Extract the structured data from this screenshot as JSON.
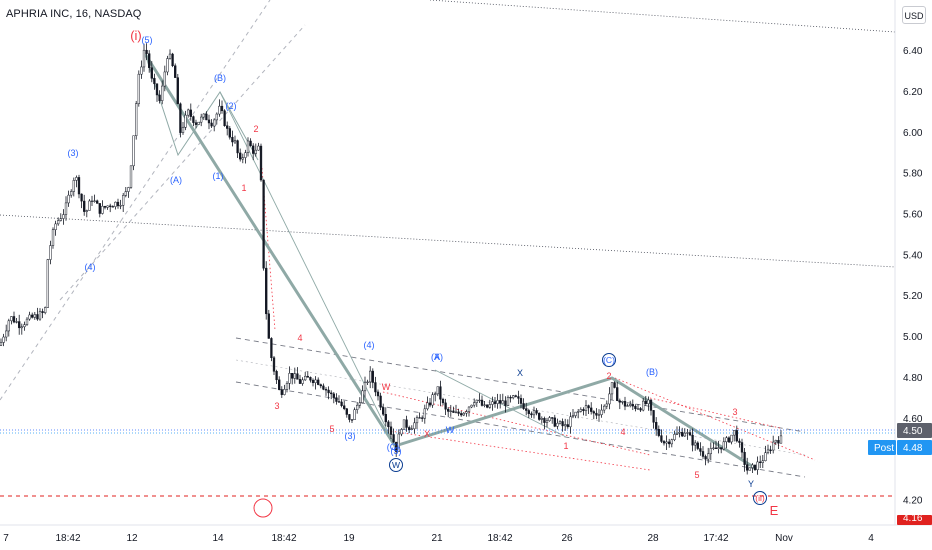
{
  "header": {
    "title": "APHRIA INC, 16, NASDAQ",
    "currency": "USD"
  },
  "chart_data": {
    "type": "candlestick",
    "title": "APHRIA INC, 16, NASDAQ",
    "currency": "USD",
    "ylim": [
      4.08,
      6.65
    ],
    "y_ticks": [
      "6.40",
      "6.20",
      "6.00",
      "5.80",
      "5.60",
      "5.40",
      "5.20",
      "5.00",
      "4.80",
      "4.60",
      "4.20"
    ],
    "x_ticks": [
      "7",
      "18:42",
      "12",
      "14",
      "18:42",
      "19",
      "21",
      "18:42",
      "26",
      "28",
      "17:42",
      "Nov",
      "4"
    ],
    "price_labels": {
      "last": "4.50",
      "post_label": "Post",
      "post_value": "4.48",
      "stop_value": "4.16"
    },
    "stop_level": 4.16,
    "price_path": [
      [
        0,
        4.96
      ],
      [
        10,
        5.1
      ],
      [
        20,
        5.06
      ],
      [
        30,
        5.09
      ],
      [
        45,
        5.12
      ],
      [
        48,
        5.4
      ],
      [
        55,
        5.55
      ],
      [
        65,
        5.62
      ],
      [
        75,
        5.8
      ],
      [
        85,
        5.6
      ],
      [
        92,
        5.68
      ],
      [
        100,
        5.62
      ],
      [
        110,
        5.65
      ],
      [
        120,
        5.66
      ],
      [
        128,
        5.72
      ],
      [
        132,
        5.9
      ],
      [
        138,
        6.25
      ],
      [
        145,
        6.43
      ],
      [
        152,
        6.25
      ],
      [
        160,
        6.15
      ],
      [
        168,
        6.4
      ],
      [
        175,
        6.28
      ],
      [
        180,
        6.0
      ],
      [
        188,
        6.1
      ],
      [
        196,
        6.05
      ],
      [
        205,
        6.08
      ],
      [
        212,
        6.05
      ],
      [
        220,
        6.12
      ],
      [
        228,
        6.0
      ],
      [
        235,
        5.95
      ],
      [
        240,
        5.85
      ],
      [
        248,
        5.95
      ],
      [
        255,
        5.9
      ],
      [
        260,
        5.93
      ],
      [
        263,
        5.4
      ],
      [
        267,
        5.05
      ],
      [
        272,
        4.88
      ],
      [
        280,
        4.72
      ],
      [
        290,
        4.82
      ],
      [
        300,
        4.78
      ],
      [
        310,
        4.8
      ],
      [
        320,
        4.78
      ],
      [
        330,
        4.72
      ],
      [
        340,
        4.68
      ],
      [
        350,
        4.58
      ],
      [
        360,
        4.7
      ],
      [
        370,
        4.82
      ],
      [
        380,
        4.68
      ],
      [
        390,
        4.55
      ],
      [
        396,
        4.45
      ],
      [
        402,
        4.58
      ],
      [
        410,
        4.56
      ],
      [
        420,
        4.6
      ],
      [
        430,
        4.68
      ],
      [
        437,
        4.75
      ],
      [
        445,
        4.64
      ],
      [
        455,
        4.62
      ],
      [
        465,
        4.64
      ],
      [
        475,
        4.7
      ],
      [
        485,
        4.65
      ],
      [
        495,
        4.68
      ],
      [
        505,
        4.68
      ],
      [
        515,
        4.7
      ],
      [
        525,
        4.66
      ],
      [
        535,
        4.62
      ],
      [
        545,
        4.6
      ],
      [
        555,
        4.58
      ],
      [
        565,
        4.56
      ],
      [
        575,
        4.62
      ],
      [
        585,
        4.66
      ],
      [
        595,
        4.62
      ],
      [
        605,
        4.66
      ],
      [
        612,
        4.76
      ],
      [
        620,
        4.68
      ],
      [
        630,
        4.66
      ],
      [
        640,
        4.66
      ],
      [
        648,
        4.68
      ],
      [
        655,
        4.55
      ],
      [
        665,
        4.48
      ],
      [
        675,
        4.52
      ],
      [
        685,
        4.54
      ],
      [
        695,
        4.47
      ],
      [
        705,
        4.42
      ],
      [
        715,
        4.45
      ],
      [
        725,
        4.48
      ],
      [
        735,
        4.54
      ],
      [
        742,
        4.42
      ],
      [
        748,
        4.34
      ],
      [
        756,
        4.37
      ],
      [
        766,
        4.42
      ],
      [
        775,
        4.5
      ],
      [
        782,
        4.5
      ]
    ],
    "wave_labels": [
      {
        "text": "(i)",
        "color": "#f23645"
      },
      {
        "text": "(5)",
        "color": "#2962ff"
      },
      {
        "text": "(B)",
        "color": "#2962ff"
      },
      {
        "text": "(2)",
        "color": "#2962ff"
      },
      {
        "text": "2",
        "color": "#f23645"
      },
      {
        "text": "(3)",
        "color": "#2962ff"
      },
      {
        "text": "(A)",
        "color": "#2962ff"
      },
      {
        "text": "(1)",
        "color": "#2962ff"
      },
      {
        "text": "1",
        "color": "#f23645"
      },
      {
        "text": "(4)",
        "color": "#2962ff"
      },
      {
        "text": "4",
        "color": "#f23645"
      },
      {
        "text": "3",
        "color": "#f23645"
      },
      {
        "text": "(4)",
        "color": "#2962ff"
      },
      {
        "text": "5",
        "color": "#f23645"
      },
      {
        "text": "(3)",
        "color": "#2962ff"
      },
      {
        "text": "(C)",
        "color": "#2962ff"
      },
      {
        "text": "(5)",
        "color": "#2962ff"
      },
      {
        "text": "W",
        "color": "#0b3d91"
      },
      {
        "text": "W",
        "color": "#f23645"
      },
      {
        "text": "X",
        "color": "#f23645"
      },
      {
        "text": "W",
        "color": "#2962ff"
      },
      {
        "text": "(A)",
        "color": "#2962ff"
      },
      {
        "text": "X",
        "color": "#2962ff"
      },
      {
        "text": "X",
        "color": "#0b3d91"
      },
      {
        "text": "(C)",
        "color": "#2962ff"
      },
      {
        "text": "2",
        "color": "#f23645"
      },
      {
        "text": "(B)",
        "color": "#2962ff"
      },
      {
        "text": "1",
        "color": "#f23645"
      },
      {
        "text": "4",
        "color": "#f23645"
      },
      {
        "text": "3",
        "color": "#f23645"
      },
      {
        "text": "5",
        "color": "#f23645"
      },
      {
        "text": "Y",
        "color": "#0b3d91"
      },
      {
        "text": "(ii)",
        "color": "#f23645"
      },
      {
        "text": "E",
        "color": "#f23645"
      }
    ],
    "colors": {
      "candle": "#131722",
      "wave_red": "#f23645",
      "wave_blue": "#2962ff",
      "thick_line": "#8fa9a6",
      "last_label_bg": "#5d606b",
      "post_label_bg": "#2196f3",
      "stop_label_bg": "#e0221f"
    }
  }
}
